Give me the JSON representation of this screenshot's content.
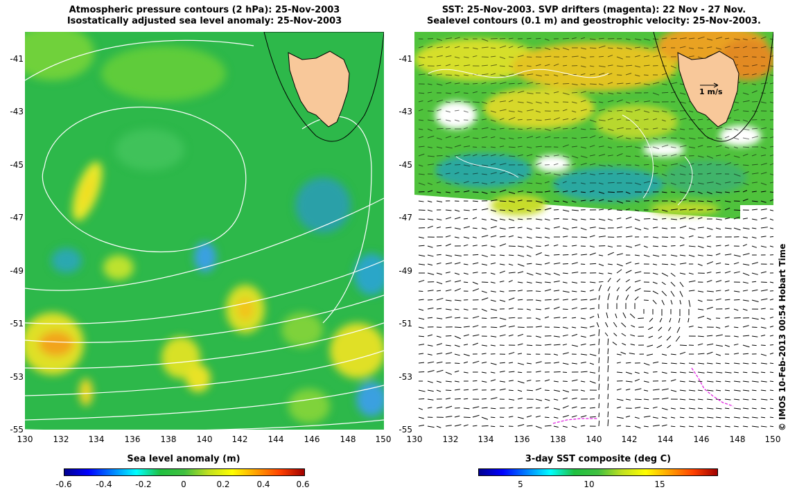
{
  "left": {
    "title1": "Atmospheric pressure contours (2 hPa): 25-Nov-2003",
    "title2": "Isostatically adjusted sea level anomaly: 25-Nov-2003",
    "colorbar": {
      "title": "Sea level anomaly (m)",
      "ticks": [
        "-0.6",
        "-0.4",
        "-0.2",
        "0",
        "0.2",
        "0.4",
        "0.6"
      ]
    }
  },
  "right": {
    "title1": "SST: 25-Nov-2003. SVP drifters (magenta): 22 Nov - 27 Nov.",
    "title2": "Sealevel contours (0.1 m) and geostrophic velocity: 25-Nov-2003.",
    "scale_label": "1 m/s",
    "colorbar": {
      "title": "3-day SST composite (deg C)",
      "ticks": [
        "5",
        "10",
        "15"
      ]
    }
  },
  "axes": {
    "lat_ticks": [
      "-41",
      "-43",
      "-45",
      "-47",
      "-49",
      "-51",
      "-53",
      "-55"
    ],
    "lon_ticks": [
      "130",
      "132",
      "134",
      "136",
      "138",
      "140",
      "142",
      "144",
      "146",
      "148",
      "150"
    ],
    "lat_range": [
      -55,
      -40
    ],
    "lon_range": [
      130,
      150
    ]
  },
  "copyright": "© IMOS 10-Feb-2013 00:54 Hobart Time",
  "colors": {
    "land": "#f8c89a",
    "ocean_green": "#33b444",
    "drifter": "#e020e0"
  }
}
